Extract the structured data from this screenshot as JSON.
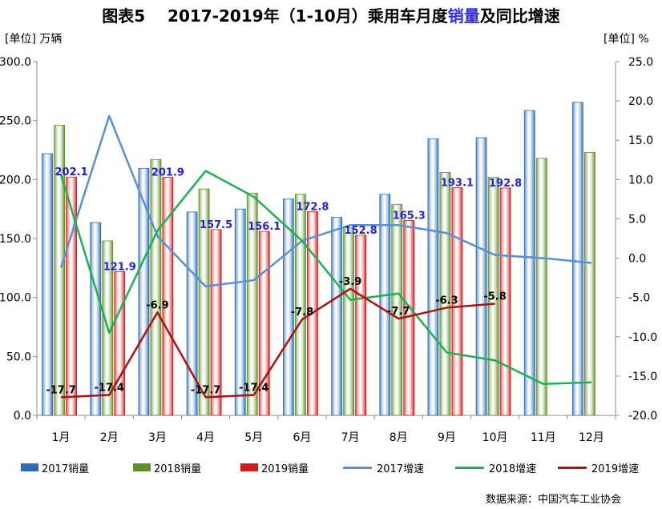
{
  "figure": {
    "label": "图表5",
    "title_pre": "2017-2019年（1-10月）乘用车月度",
    "title_hl": "销量",
    "title_post": "及同比增速",
    "unit_left": "[单位] 万辆",
    "unit_right": "[单位] %",
    "source": "数据来源：中国汽车工业协会"
  },
  "colors": {
    "bar_2017": "#2e6db3",
    "bar_2018": "#5f8f2a",
    "bar_2019": "#d11c1c",
    "line_2017": "#5a8fd6",
    "line_2018": "#1db24f",
    "line_2019": "#b01010",
    "label_blue": "#1f1fe0",
    "axis": "#8c8c8c"
  },
  "chart_data": {
    "type": "bar",
    "categories": [
      "1月",
      "2月",
      "3月",
      "4月",
      "5月",
      "6月",
      "7月",
      "8月",
      "9月",
      "10月",
      "11月",
      "12月"
    ],
    "y_left": {
      "min": 0,
      "max": 300,
      "step": 50,
      "tick_labels": [
        "0.0",
        "50.0",
        "100.0",
        "150.0",
        "200.0",
        "250.0",
        "300.0"
      ]
    },
    "y_right": {
      "min": -20,
      "max": 25,
      "step": 5,
      "tick_labels": [
        "-20.0",
        "-15.0",
        "-10.0",
        "-5.0",
        "0.0",
        "5.0",
        "10.0",
        "15.0",
        "20.0",
        "25.0"
      ]
    },
    "bar_series": [
      {
        "name": "2017销量",
        "values": [
          222.0,
          163.5,
          209.5,
          172.5,
          175.0,
          183.5,
          168.0,
          187.5,
          234.5,
          235.5,
          258.5,
          265.5
        ]
      },
      {
        "name": "2018销量",
        "values": [
          246.0,
          148.0,
          217.0,
          192.0,
          188.5,
          187.5,
          159.0,
          179.0,
          206.0,
          202.0,
          218.0,
          223.0
        ]
      },
      {
        "name": "2019销量",
        "values": [
          202.1,
          121.9,
          201.9,
          157.5,
          156.1,
          172.8,
          152.8,
          165.3,
          193.1,
          192.8,
          null,
          null
        ]
      }
    ],
    "bar_labels_2019": [
      "202.1",
      "121.9",
      "201.9",
      "157.5",
      "156.1",
      "172.8",
      "152.8",
      "165.3",
      "193.1",
      "192.8"
    ],
    "line_series": [
      {
        "name": "2017增速",
        "values": [
          -1.2,
          18.1,
          2.8,
          -3.6,
          -2.8,
          2.2,
          4.2,
          4.2,
          3.2,
          0.4,
          0.0,
          -0.6
        ]
      },
      {
        "name": "2018增速",
        "values": [
          10.6,
          -9.5,
          3.5,
          11.1,
          7.8,
          2.2,
          -5.3,
          -4.5,
          -12.0,
          -13.0,
          -16.0,
          -15.8
        ]
      },
      {
        "name": "2019增速",
        "values": [
          -17.7,
          -17.4,
          -6.9,
          -17.7,
          -17.4,
          -7.8,
          -3.9,
          -7.7,
          -6.3,
          -5.8,
          null,
          null
        ]
      }
    ],
    "line_labels_2019": [
      "-17.7",
      "-17.4",
      "-6.9",
      "-17.7",
      "-17.4",
      "-7.8",
      "-3.9",
      "-7.7",
      "-6.3",
      "-5.8"
    ],
    "legend": [
      "2017销量",
      "2018销量",
      "2019销量",
      "2017增速",
      "2018增速",
      "2019增速"
    ],
    "legend_position": "bottom",
    "grid": false
  }
}
